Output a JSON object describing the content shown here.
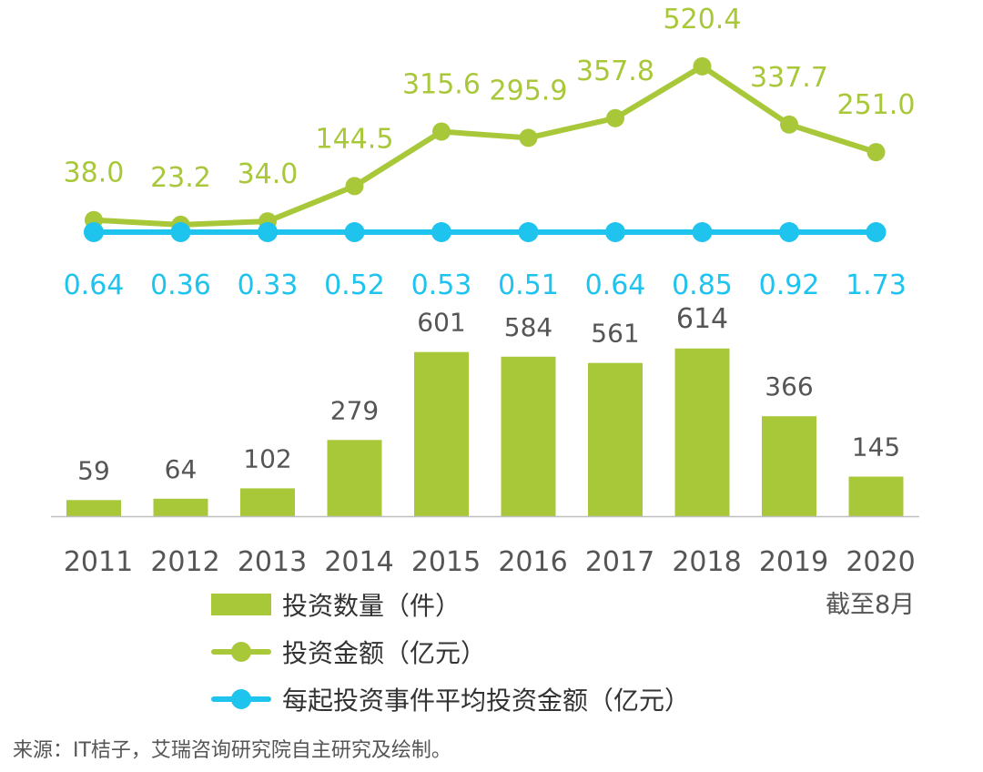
{
  "chart_data": {
    "type": "bar",
    "categories": [
      "2011",
      "2012",
      "2013",
      "2014",
      "2015",
      "2016",
      "2017",
      "2018",
      "2019",
      "2020"
    ],
    "category_note": "截至8月",
    "series": [
      {
        "name": "投资数量（件）",
        "type": "bar",
        "values": [
          59,
          64,
          102,
          279,
          601,
          584,
          561,
          614,
          366,
          145
        ],
        "color": "#a8c83a"
      },
      {
        "name": "投资金额（亿元）",
        "type": "line",
        "values": [
          38.0,
          23.2,
          34.0,
          144.5,
          315.6,
          295.9,
          357.8,
          520.4,
          337.7,
          251.0
        ],
        "labels": [
          "38.0",
          "23.2",
          "34.0",
          "144.5",
          "315.6",
          "295.9",
          "357.8",
          "520.4",
          "337.7",
          "251.0"
        ],
        "color": "#a8c83a"
      },
      {
        "name": "每起投资事件平均投资金额（亿元）",
        "type": "line",
        "values": [
          0.64,
          0.36,
          0.33,
          0.52,
          0.53,
          0.51,
          0.64,
          0.85,
          0.92,
          1.73
        ],
        "labels": [
          "0.64",
          "0.36",
          "0.33",
          "0.52",
          "0.53",
          "0.51",
          "0.64",
          "0.85",
          "0.92",
          "1.73"
        ],
        "color": "#1ec3ee"
      }
    ],
    "title": "",
    "xlabel": "",
    "ylabel": "",
    "grid": false,
    "legend_position": "bottom"
  },
  "source": "来源：IT桔子，艾瑞咨询研究院自主研究及绘制。",
  "colors": {
    "green": "#a8c83a",
    "blue": "#1ec3ee",
    "axis": "#bfbfbf",
    "text": "#555555"
  }
}
